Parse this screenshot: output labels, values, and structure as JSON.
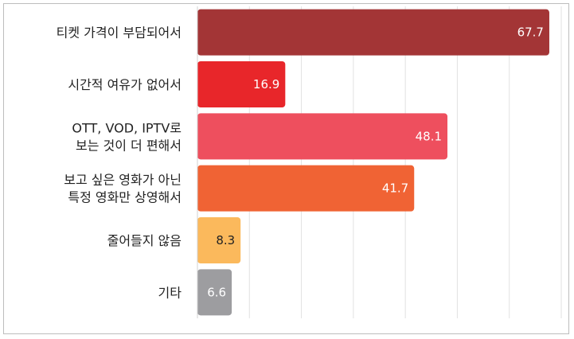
{
  "chart_data": {
    "type": "bar",
    "orientation": "horizontal",
    "title": "",
    "xlabel": "",
    "ylabel": "",
    "xlim": [
      0,
      70
    ],
    "grid": true,
    "categories": [
      [
        "티켓 가격이 부담되어서"
      ],
      [
        "시간적 여유가 없어서"
      ],
      [
        "OTT, VOD, IPTV로",
        "보는 것이 더 편해서"
      ],
      [
        "보고 싶은 영화가 아닌",
        "특정 영화만 상영해서"
      ],
      [
        "줄어들지 않음"
      ],
      [
        "기타"
      ]
    ],
    "values": [
      67.7,
      16.9,
      48.1,
      41.7,
      8.3,
      6.6
    ],
    "value_labels": [
      "67.7",
      "16.9",
      "48.1",
      "41.7",
      "8.3",
      "6.6"
    ],
    "colors": [
      "#a33536",
      "#e8262a",
      "#ee4f5e",
      "#f06334",
      "#fbb95c",
      "#9d9da0"
    ],
    "label_colors": [
      "#ffffff",
      "#ffffff",
      "#ffffff",
      "#ffffff",
      "#222222",
      "#ffffff"
    ]
  }
}
